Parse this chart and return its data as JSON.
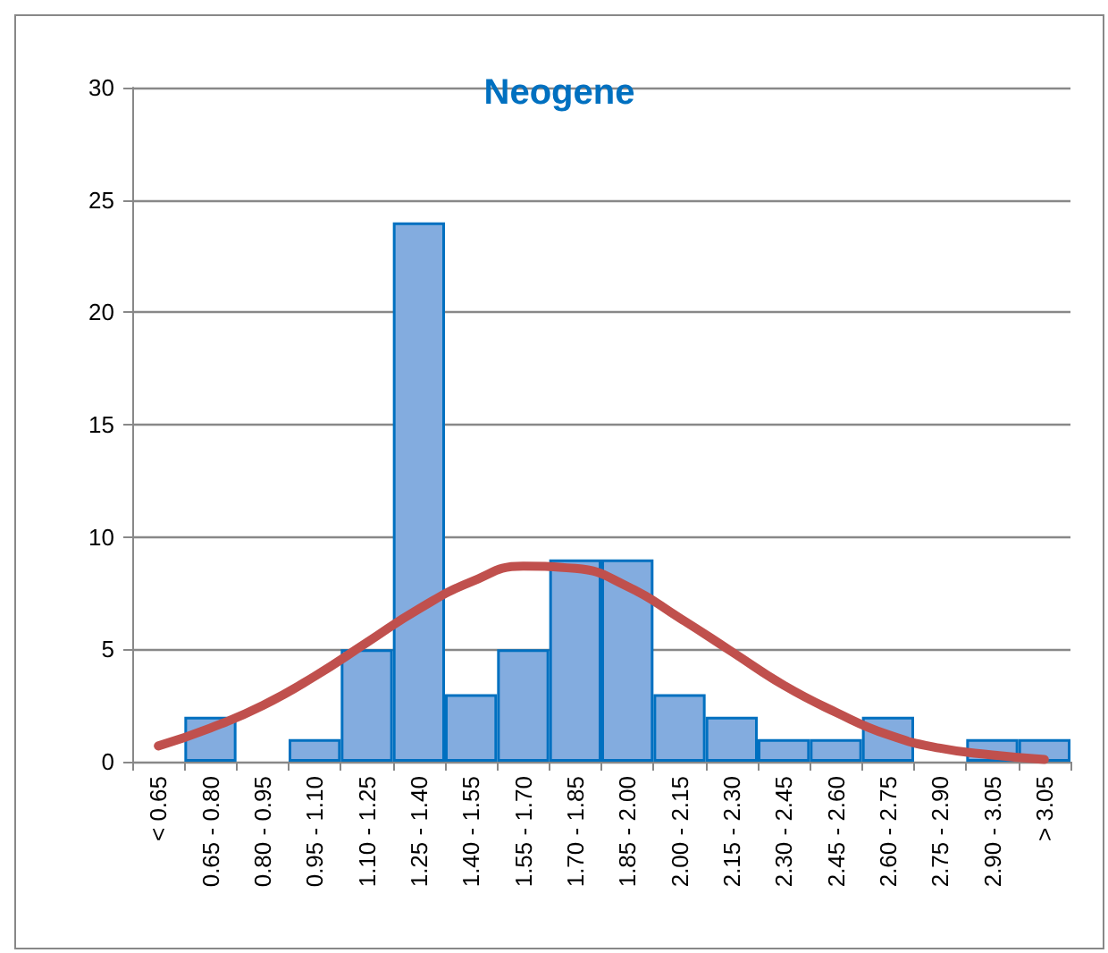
{
  "chart_data": {
    "type": "bar",
    "title": "Neogene",
    "categories": [
      "< 0.65",
      "0.65 - 0.80",
      "0.80 - 0.95",
      "0.95 - 1.10",
      "1.10 - 1.25",
      "1.25 - 1.40",
      "1.40 - 1.55",
      "1.55 - 1.70",
      "1.70 - 1.85",
      "1.85 - 2.00",
      "2.00 - 2.15",
      "2.15 - 2.30",
      "2.30 - 2.45",
      "2.45 - 2.60",
      "2.60 - 2.75",
      "2.75 - 2.90",
      "2.90 - 3.05",
      "> 3.05"
    ],
    "series": [
      {
        "color": "#83acdf",
        "values": [
          0,
          2,
          0,
          1,
          5,
          24,
          3,
          5,
          9,
          9,
          3,
          2,
          1,
          1,
          2,
          0,
          1,
          1
        ]
      },
      {
        "type": "line",
        "color": "#c0504d",
        "values": [
          0.7,
          1.5,
          2.5,
          3.8,
          5.3,
          6.8,
          8.0,
          8.7,
          8.6,
          7.8,
          6.4,
          4.9,
          3.4,
          2.2,
          1.2,
          0.6,
          0.3,
          0.1
        ]
      }
    ],
    "ylim": [
      0,
      30
    ],
    "yticks": [
      0,
      5,
      10,
      15,
      20,
      25,
      30
    ],
    "grid": "y",
    "marker": "none"
  }
}
